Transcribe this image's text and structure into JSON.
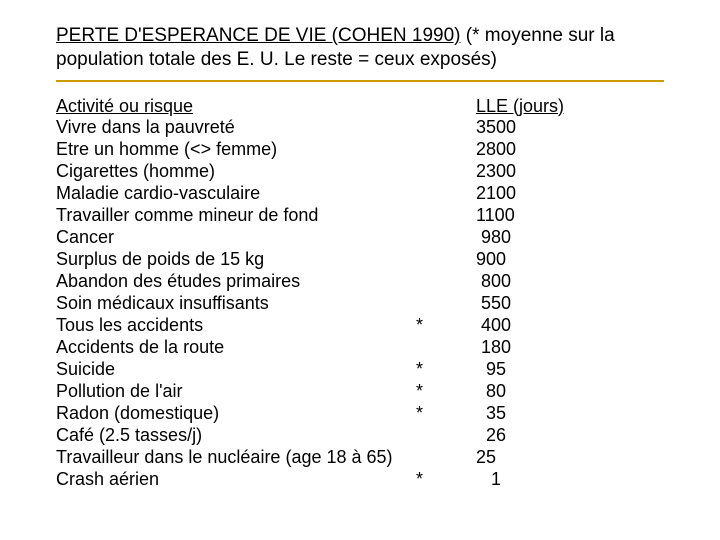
{
  "title": {
    "underlined": "PERTE D'ESPERANCE DE VIE (COHEN 1990)",
    "rest": " (* moyenne sur la population totale des E. U.  Le reste = ceux exposés)"
  },
  "headers": {
    "activity": "Activité ou risque",
    "value": "LLE (jours)"
  },
  "rows": [
    {
      "activity": "Vivre dans la pauvreté",
      "star": "",
      "value": "3500"
    },
    {
      "activity": "Etre un homme (<> femme)",
      "star": "",
      "value": "2800"
    },
    {
      "activity": "Cigarettes (homme)",
      "star": "",
      "value": "2300"
    },
    {
      "activity": "Maladie cardio-vasculaire",
      "star": "",
      "value": "2100"
    },
    {
      "activity": "Travailler comme mineur de fond",
      "star": "",
      "value": "1100"
    },
    {
      "activity": "Cancer",
      "star": "",
      "value": " 980"
    },
    {
      "activity": "Surplus de poids de 15 kg",
      "star": "",
      "value": "900"
    },
    {
      "activity": "Abandon des études primaires",
      "star": "",
      "value": " 800"
    },
    {
      "activity": "Soin médicaux insuffisants",
      "star": "",
      "value": " 550"
    },
    {
      "activity": "Tous les accidents",
      "star": "*",
      "value": " 400"
    },
    {
      "activity": "Accidents de la route",
      "star": "",
      "value": " 180"
    },
    {
      "activity": "Suicide",
      "star": "*",
      "value": "  95"
    },
    {
      "activity": "Pollution de l'air",
      "star": "*",
      "value": "  80"
    },
    {
      "activity": "Radon (domestique)",
      "star": "*",
      "value": "  35"
    },
    {
      "activity": "Café (2.5 tasses/j)",
      "star": "",
      "value": "  26"
    },
    {
      "activity": "Travailleur dans le nucléaire (age 18 à 65)",
      "star": "",
      "value": "25"
    },
    {
      "activity": "Crash aérien",
      "star": "*",
      "value": "   1"
    }
  ],
  "colors": {
    "divider": "#cc9900",
    "text": "#000000",
    "background": "#ffffff"
  }
}
